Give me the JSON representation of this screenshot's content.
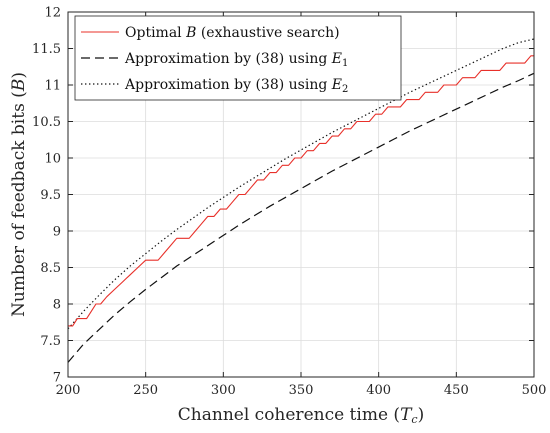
{
  "chart_data": {
    "type": "line",
    "title": "",
    "xlabel": "Channel coherence time ",
    "xlabel_symbol": "T",
    "xlabel_sub": "c",
    "ylabel": "Number of feedback bits ",
    "ylabel_symbol": "B",
    "xlim": [
      200,
      500
    ],
    "ylim": [
      7,
      12
    ],
    "x_ticks": [
      "200",
      "250",
      "300",
      "350",
      "400",
      "450",
      "500"
    ],
    "y_ticks": [
      "7",
      "7.5",
      "8",
      "8.5",
      "9",
      "9.5",
      "10",
      "10.5",
      "11",
      "11.5",
      "12"
    ],
    "grid": true,
    "legend_position": "top-left",
    "series": [
      {
        "name": "Optimal B (exhaustive search)",
        "legend_prefix": "Optimal ",
        "legend_symbol": "B",
        "legend_suffix": " (exhaustive search)",
        "color": "#e8302a",
        "dash": "solid",
        "x": [
          200,
          203,
          206,
          209,
          212,
          215,
          218,
          221,
          225,
          230,
          235,
          240,
          245,
          250,
          254,
          258,
          262,
          266,
          270,
          274,
          278,
          282,
          286,
          290,
          294,
          298,
          302,
          306,
          310,
          314,
          318,
          322,
          326,
          330,
          334,
          338,
          342,
          346,
          350,
          354,
          358,
          362,
          366,
          370,
          374,
          378,
          382,
          386,
          390,
          394,
          398,
          402,
          406,
          410,
          414,
          418,
          422,
          426,
          430,
          434,
          438,
          442,
          446,
          450,
          454,
          458,
          462,
          466,
          470,
          474,
          478,
          482,
          486,
          490,
          494,
          498,
          500
        ],
        "y": [
          7.7,
          7.7,
          7.8,
          7.8,
          7.8,
          7.9,
          8.0,
          8.0,
          8.1,
          8.2,
          8.3,
          8.4,
          8.5,
          8.6,
          8.6,
          8.6,
          8.7,
          8.8,
          8.9,
          8.9,
          8.9,
          9.0,
          9.1,
          9.2,
          9.2,
          9.3,
          9.3,
          9.4,
          9.5,
          9.5,
          9.6,
          9.7,
          9.7,
          9.8,
          9.8,
          9.9,
          9.9,
          10.0,
          10.0,
          10.1,
          10.1,
          10.2,
          10.2,
          10.3,
          10.3,
          10.4,
          10.4,
          10.5,
          10.5,
          10.5,
          10.6,
          10.6,
          10.7,
          10.7,
          10.7,
          10.8,
          10.8,
          10.8,
          10.9,
          10.9,
          10.9,
          11.0,
          11.0,
          11.0,
          11.1,
          11.1,
          11.1,
          11.2,
          11.2,
          11.2,
          11.2,
          11.3,
          11.3,
          11.3,
          11.3,
          11.4,
          11.4
        ]
      },
      {
        "name": "Approximation by (38) using E1",
        "legend_prefix": "Approximation by (38) using ",
        "legend_symbol": "E",
        "legend_sub": "1",
        "color": "#111111",
        "dash": "dashed",
        "x": [
          200,
          210,
          220,
          230,
          240,
          250,
          260,
          270,
          280,
          290,
          300,
          310,
          320,
          330,
          340,
          350,
          360,
          370,
          380,
          390,
          400,
          410,
          420,
          430,
          440,
          450,
          460,
          470,
          480,
          490,
          500
        ],
        "y": [
          7.2,
          7.45,
          7.65,
          7.85,
          8.03,
          8.2,
          8.36,
          8.52,
          8.66,
          8.8,
          8.94,
          9.08,
          9.21,
          9.34,
          9.46,
          9.58,
          9.7,
          9.82,
          9.93,
          10.04,
          10.15,
          10.26,
          10.37,
          10.47,
          10.57,
          10.67,
          10.77,
          10.87,
          10.97,
          11.06,
          11.16
        ]
      },
      {
        "name": "Approximation by (38) using E2",
        "legend_prefix": "Approximation by (38) using ",
        "legend_symbol": "E",
        "legend_sub": "2",
        "color": "#111111",
        "dash": "dotted",
        "x": [
          200,
          210,
          220,
          230,
          240,
          250,
          260,
          270,
          280,
          290,
          300,
          310,
          320,
          330,
          340,
          350,
          360,
          370,
          380,
          390,
          400,
          410,
          420,
          430,
          440,
          450,
          460,
          470,
          480,
          490,
          500
        ],
        "y": [
          7.66,
          7.9,
          8.12,
          8.33,
          8.52,
          8.69,
          8.86,
          9.02,
          9.17,
          9.32,
          9.46,
          9.6,
          9.73,
          9.86,
          9.99,
          10.11,
          10.23,
          10.35,
          10.46,
          10.57,
          10.68,
          10.79,
          10.9,
          11.0,
          11.1,
          11.2,
          11.3,
          11.4,
          11.5,
          11.58,
          11.63
        ]
      }
    ]
  }
}
